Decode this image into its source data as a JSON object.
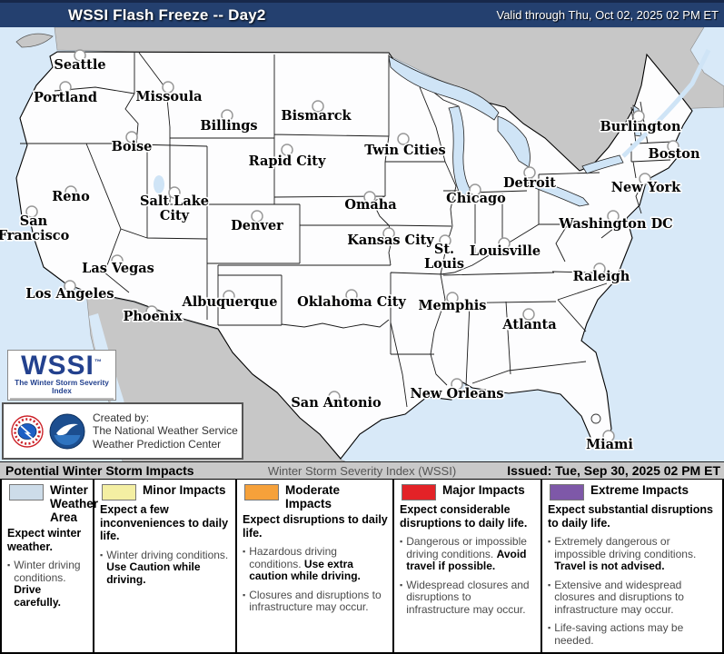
{
  "header": {
    "title": "WSSI Flash Freeze -- Day2",
    "valid": "Valid through Thu, Oct 02, 2025 02 PM ET",
    "bg_color": "#24406f"
  },
  "issued_bar": {
    "left": "Potential Winter Storm Impacts",
    "center": "Winter Storm Severity Index (WSSI)",
    "right": "Issued: Tue, Sep 30, 2025 02 PM ET"
  },
  "logo": {
    "name": "WSSI",
    "tm": "™",
    "tagline": "The Winter Storm Severity Index",
    "scale_colors": [
      "#ccd9e8",
      "#f5f0b0",
      "#f3e37c",
      "#f5a93c",
      "#ef7b24",
      "#e8272d",
      "#d81f26",
      "#7e57a5"
    ]
  },
  "credit": {
    "line1": "Created by:",
    "line2": "The National Weather Service",
    "line3": "Weather Prediction Center"
  },
  "map": {
    "ocean_color": "#d8e9f8",
    "foreign_land_color": "#c7c7c7",
    "us_land_color": "#fdfdfe",
    "lake_color": "#cfe4f6",
    "cities": [
      {
        "name": "Seattle",
        "label_lines": [
          "Seattle"
        ],
        "marker": [
          88,
          61
        ],
        "label": [
          88,
          76
        ]
      },
      {
        "name": "Portland",
        "label_lines": [
          "Portland"
        ],
        "marker": [
          72,
          96
        ],
        "label": [
          72,
          112
        ]
      },
      {
        "name": "Missoula",
        "label_lines": [
          "Missoula"
        ],
        "marker": [
          185,
          96
        ],
        "label": [
          186,
          111
        ]
      },
      {
        "name": "Bismarck",
        "label_lines": [
          "Bismarck"
        ],
        "marker": [
          350,
          117
        ],
        "label": [
          348,
          132
        ]
      },
      {
        "name": "Billings",
        "label_lines": [
          "Billings"
        ],
        "marker": [
          250,
          127
        ],
        "label": [
          252,
          143
        ]
      },
      {
        "name": "Boise",
        "label_lines": [
          "Boise"
        ],
        "marker": [
          145,
          151
        ],
        "label": [
          145,
          166
        ]
      },
      {
        "name": "Twin Cities",
        "label_lines": [
          "Twin Cities"
        ],
        "marker": [
          444,
          153
        ],
        "label": [
          446,
          170
        ]
      },
      {
        "name": "Rapid City",
        "label_lines": [
          "Rapid City"
        ],
        "marker": [
          316,
          165
        ],
        "label": [
          316,
          182
        ]
      },
      {
        "name": "Burlington",
        "label_lines": [
          "Burlington"
        ],
        "marker": [
          703,
          128
        ],
        "label": [
          705,
          144
        ]
      },
      {
        "name": "Boston",
        "label_lines": [
          "Boston"
        ],
        "marker": [
          741,
          161
        ],
        "label": [
          742,
          174
        ]
      },
      {
        "name": "Detroit",
        "label_lines": [
          "Detroit"
        ],
        "marker": [
          583,
          190
        ],
        "label": [
          583,
          206
        ]
      },
      {
        "name": "New York",
        "label_lines": [
          "New York"
        ],
        "marker": [
          710,
          197
        ],
        "label": [
          711,
          211
        ]
      },
      {
        "name": "Chicago",
        "label_lines": [
          "Chicago"
        ],
        "marker": [
          523,
          209
        ],
        "label": [
          524,
          223
        ]
      },
      {
        "name": "Reno",
        "label_lines": [
          "Reno"
        ],
        "marker": [
          78,
          211
        ],
        "label": [
          78,
          221
        ]
      },
      {
        "name": "Salt Lake City",
        "label_lines": [
          "Salt Lake",
          "City"
        ],
        "marker": [
          192,
          212
        ],
        "label": [
          192,
          226
        ]
      },
      {
        "name": "Omaha",
        "label_lines": [
          "Omaha"
        ],
        "marker": [
          407,
          217
        ],
        "label": [
          408,
          230
        ]
      },
      {
        "name": "San Francisco",
        "label_lines": [
          "San",
          "Francisco"
        ],
        "marker": [
          35,
          233
        ],
        "label": [
          37,
          248
        ]
      },
      {
        "name": "Denver",
        "label_lines": [
          "Denver"
        ],
        "marker": [
          283,
          238
        ],
        "label": [
          283,
          253
        ]
      },
      {
        "name": "Washington DC",
        "label_lines": [
          "Washington DC"
        ],
        "marker": [
          675,
          238
        ],
        "label": [
          678,
          251
        ]
      },
      {
        "name": "Kansas City",
        "label_lines": [
          "Kansas City"
        ],
        "marker": [
          428,
          257
        ],
        "label": [
          430,
          269
        ]
      },
      {
        "name": "St. Louis",
        "label_lines": [
          "St.",
          "Louis"
        ],
        "marker": [
          490,
          265
        ],
        "label": [
          489,
          279
        ]
      },
      {
        "name": "Louisville",
        "label_lines": [
          "Louisville"
        ],
        "marker": [
          555,
          268
        ],
        "label": [
          556,
          281
        ]
      },
      {
        "name": "Las Vegas",
        "label_lines": [
          "Las Vegas"
        ],
        "marker": [
          129,
          287
        ],
        "label": [
          130,
          300
        ]
      },
      {
        "name": "Raleigh",
        "label_lines": [
          "Raleigh"
        ],
        "marker": [
          660,
          296
        ],
        "label": [
          662,
          309
        ]
      },
      {
        "name": "Los Angeles",
        "label_lines": [
          "Los Angeles"
        ],
        "marker": [
          77,
          315
        ],
        "label": [
          77,
          328
        ]
      },
      {
        "name": "Albuquerque",
        "label_lines": [
          "Albuquerque"
        ],
        "marker": [
          252,
          326
        ],
        "label": [
          253,
          337
        ]
      },
      {
        "name": "Oklahoma City",
        "label_lines": [
          "Oklahoma City"
        ],
        "marker": [
          387,
          325
        ],
        "label": [
          387,
          337
        ]
      },
      {
        "name": "Memphis",
        "label_lines": [
          "Memphis"
        ],
        "marker": [
          498,
          328
        ],
        "label": [
          498,
          341
        ]
      },
      {
        "name": "Phoenix",
        "label_lines": [
          "Phoenix"
        ],
        "marker": [
          167,
          343
        ],
        "label": [
          168,
          353
        ]
      },
      {
        "name": "Atlanta",
        "label_lines": [
          "Atlanta"
        ],
        "marker": [
          582,
          346
        ],
        "label": [
          583,
          362
        ]
      },
      {
        "name": "New Orleans",
        "label_lines": [
          "New Orleans"
        ],
        "marker": [
          503,
          423
        ],
        "label": [
          503,
          438
        ]
      },
      {
        "name": "San Antonio",
        "label_lines": [
          "San Antonio"
        ],
        "marker": [
          368,
          437
        ],
        "label": [
          370,
          448
        ]
      },
      {
        "name": "Miami",
        "label_lines": [
          "Miami"
        ],
        "marker": [
          670,
          480
        ],
        "label": [
          671,
          494
        ]
      }
    ]
  },
  "legend": {
    "columns": [
      {
        "title": "Winter Weather Area",
        "swatch_color": "#cddce9",
        "summary": "Expect winter weather.",
        "bullets": [
          [
            {
              "t": "Winter driving conditions. "
            },
            {
              "t": "Drive carefully.",
              "b": true
            }
          ]
        ]
      },
      {
        "title": "Minor Impacts",
        "swatch_color": "#f4efa3",
        "summary": "Expect a few inconveniences to daily life.",
        "bullets": [
          [
            {
              "t": "Winter driving conditions. "
            },
            {
              "t": "Use Caution while driving.",
              "b": true
            }
          ]
        ]
      },
      {
        "title": "Moderate Impacts",
        "swatch_color": "#f6a13a",
        "summary": "Expect disruptions to daily life.",
        "bullets": [
          [
            {
              "t": "Hazardous driving conditions. "
            },
            {
              "t": "Use extra caution while driving.",
              "b": true
            }
          ],
          [
            {
              "t": "Closures and disruptions to infrastructure may occur."
            }
          ]
        ]
      },
      {
        "title": "Major Impacts",
        "swatch_color": "#e32227",
        "summary": "Expect considerable disruptions to daily life.",
        "bullets": [
          [
            {
              "t": "Dangerous or impossible driving conditions. "
            },
            {
              "t": "Avoid travel if possible.",
              "b": true
            }
          ],
          [
            {
              "t": "Widespread closures and disruptions to infrastructure may occur."
            }
          ]
        ]
      },
      {
        "title": "Extreme Impacts",
        "swatch_color": "#7e58a8",
        "summary": "Expect substantial disruptions to daily life.",
        "bullets": [
          [
            {
              "t": "Extremely dangerous or impossible driving conditions. "
            },
            {
              "t": "Travel is not advised.",
              "b": true
            }
          ],
          [
            {
              "t": "Extensive and widespread closures and disruptions to infrastructure may occur."
            }
          ],
          [
            {
              "t": "Life-saving actions may be needed."
            }
          ]
        ]
      }
    ]
  }
}
